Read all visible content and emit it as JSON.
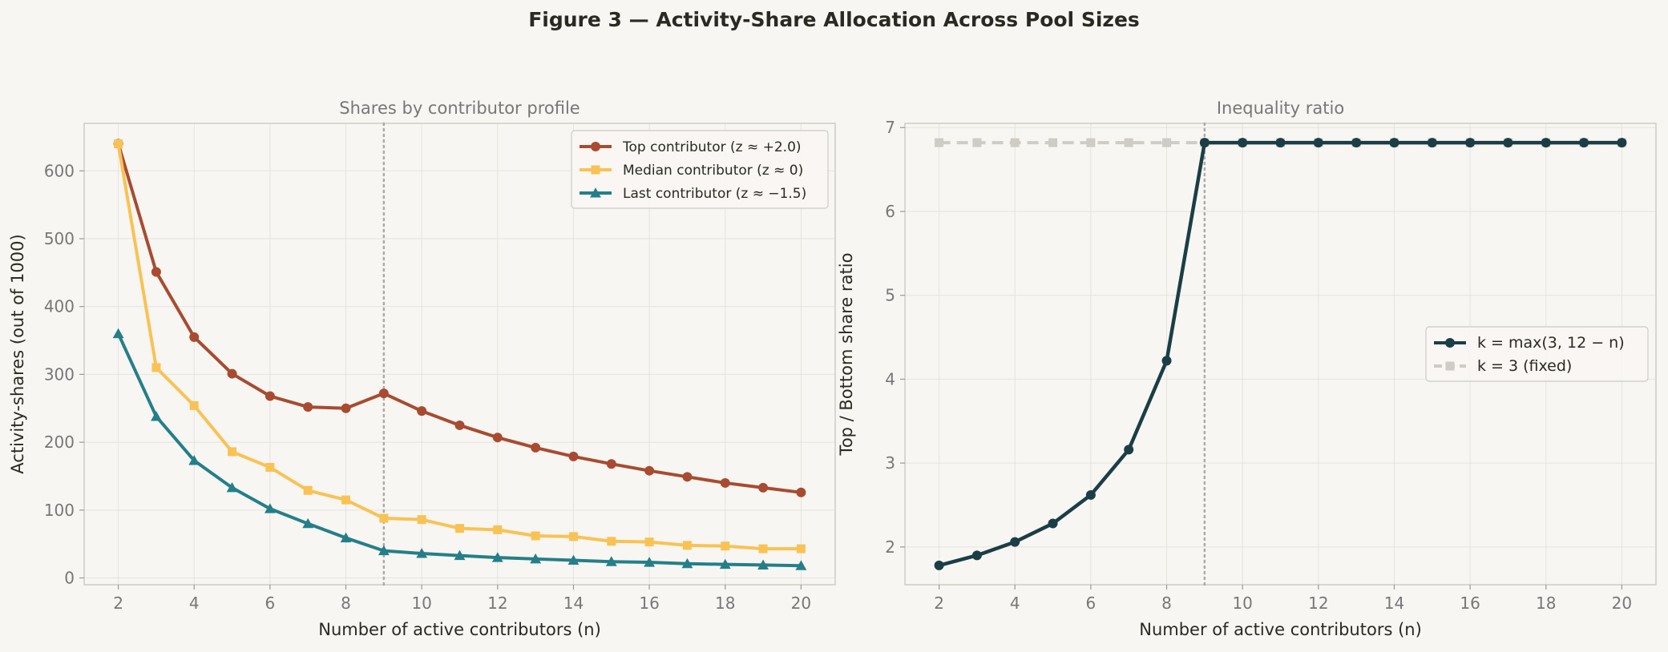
{
  "figure": {
    "title": "Figure 3 — Activity-Share Allocation Across Pool Sizes"
  },
  "chart_data": [
    {
      "type": "line",
      "title": "Shares by contributor profile",
      "xlabel": "Number of active contributors (n)",
      "ylabel": "Activity-shares (out of 1000)",
      "xlim": [
        1.1,
        20.9
      ],
      "ylim": [
        -10,
        670
      ],
      "xticks": [
        2,
        4,
        6,
        8,
        10,
        12,
        14,
        16,
        18,
        20
      ],
      "yticks": [
        0,
        100,
        200,
        300,
        400,
        500,
        600
      ],
      "grid": true,
      "legend_position": "top-right",
      "annotations": [
        {
          "type": "vertical-line",
          "x": 9,
          "style": "dotted"
        }
      ],
      "x": [
        2,
        3,
        4,
        5,
        6,
        7,
        8,
        9,
        10,
        11,
        12,
        13,
        14,
        15,
        16,
        17,
        18,
        19,
        20
      ],
      "series": [
        {
          "name": "Top contributor (z ≈ +2.0)",
          "color": "#a84b30",
          "marker": "circle",
          "values": [
            640,
            451,
            355,
            301,
            268,
            252,
            250,
            272,
            246,
            225,
            207,
            192,
            179,
            168,
            158,
            149,
            140,
            133,
            126
          ]
        },
        {
          "name": "Median contributor (z ≈ 0)",
          "color": "#f9c254",
          "marker": "square",
          "values": [
            640,
            310,
            254,
            186,
            163,
            129,
            115,
            88,
            86,
            73,
            71,
            62,
            61,
            54,
            53,
            48,
            47,
            43,
            43
          ]
        },
        {
          "name": "Last contributor (z ≈ −1.5)",
          "color": "#247f89",
          "marker": "triangle",
          "values": [
            360,
            238,
            173,
            133,
            102,
            80,
            59,
            40,
            36,
            33,
            30,
            28,
            26,
            24,
            23,
            21,
            20,
            19,
            18
          ]
        }
      ]
    },
    {
      "type": "line",
      "title": "Inequality ratio",
      "xlabel": "Number of active contributors (n)",
      "ylabel": "Top / Bottom share ratio",
      "xlim": [
        1.1,
        20.9
      ],
      "ylim": [
        1.55,
        7.05
      ],
      "xticks": [
        2,
        4,
        6,
        8,
        10,
        12,
        14,
        16,
        18,
        20
      ],
      "yticks": [
        2,
        3,
        4,
        5,
        6,
        7
      ],
      "grid": true,
      "legend_position": "center-right",
      "annotations": [
        {
          "type": "vertical-line",
          "x": 9,
          "style": "dotted"
        }
      ],
      "x": [
        2,
        3,
        4,
        5,
        6,
        7,
        8,
        9,
        10,
        11,
        12,
        13,
        14,
        15,
        16,
        17,
        18,
        19,
        20
      ],
      "series": [
        {
          "name": "k = max(3, 12 − n)",
          "color": "#1b3e46",
          "marker": "circle",
          "style": "solid",
          "values": [
            1.78,
            1.9,
            2.06,
            2.28,
            2.62,
            3.16,
            4.22,
            6.82,
            6.82,
            6.82,
            6.82,
            6.82,
            6.82,
            6.82,
            6.82,
            6.82,
            6.82,
            6.82,
            6.82
          ]
        },
        {
          "name": "k = 3 (fixed)",
          "color": "#cfcbc5",
          "marker": "square",
          "style": "dashed",
          "values": [
            6.82,
            6.82,
            6.82,
            6.82,
            6.82,
            6.82,
            6.82,
            6.82,
            6.82,
            6.82,
            6.82,
            6.82,
            6.82,
            6.82,
            6.82,
            6.82,
            6.82,
            6.82,
            6.82
          ]
        }
      ]
    }
  ]
}
